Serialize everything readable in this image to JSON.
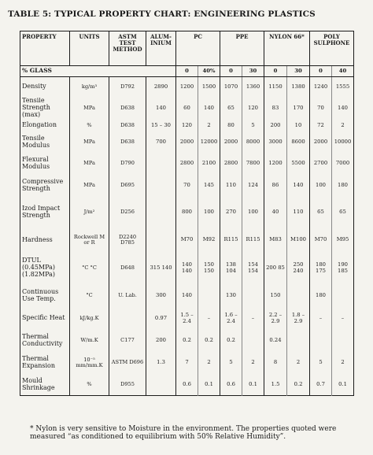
{
  "title": "TABLE 5: TYPICAL PROPERTY CHART: ENGINEERING PLASTICS",
  "headers": {
    "property": "PROPERTY",
    "units": "UNITS",
    "astm": "ASTM TEST METHOD",
    "aluminium": "ALUM- INIUM",
    "pc": "PC",
    "ppe": "PPE",
    "nylon": "NYLON 66*",
    "polysulphone": "POLY SULPHONE"
  },
  "glass_row": {
    "label": "% GLASS",
    "values": [
      "0",
      "40%",
      "0",
      "30",
      "0",
      "30",
      "0",
      "40"
    ]
  },
  "rows": [
    {
      "property": "Density",
      "units": "kg/m³",
      "astm": "D792",
      "alu": "2890",
      "values": [
        "1200",
        "1500",
        "1070",
        "1360",
        "1150",
        "1380",
        "1240",
        "1555"
      ]
    },
    {
      "property": "Tensile Strength (max)",
      "units": "MPa",
      "astm": "D638",
      "alu": "140",
      "values": [
        "60",
        "140",
        "65",
        "120",
        "83",
        "170",
        "70",
        "140"
      ]
    },
    {
      "property": "Elongation",
      "units": "%",
      "astm": "D638",
      "alu": "15 – 30",
      "values": [
        "120",
        "2",
        "80",
        "5",
        "200",
        "10",
        "72",
        "2"
      ]
    },
    {
      "property": "Tensile Modulus",
      "units": "MPa",
      "astm": "D638",
      "alu": "700",
      "values": [
        "2000",
        "12000",
        "2000",
        "8000",
        "3000",
        "8600",
        "2000",
        "10000"
      ]
    },
    {
      "property": "Flexural Modulus",
      "units": "MPa",
      "astm": "D790",
      "alu": "",
      "values": [
        "2800",
        "2100",
        "2800",
        "7800",
        "1200",
        "5500",
        "2700",
        "7000"
      ]
    },
    {
      "property": "Compressive Strength",
      "units": "MPa",
      "astm": "D695",
      "alu": "",
      "values": [
        "70",
        "145",
        "110",
        "124",
        "86",
        "140",
        "100",
        "180"
      ]
    },
    {
      "property": "Izod Impact Strength",
      "units": "J/m²",
      "astm": "D256",
      "alu": "",
      "values": [
        "800",
        "100",
        "270",
        "100",
        "40",
        "110",
        "65",
        "65"
      ]
    },
    {
      "property": "Hardness",
      "units": "Rockwell M or R",
      "astm": "D2240 D785",
      "alu": "",
      "values": [
        "M70",
        "M92",
        "R115",
        "R115",
        "M83",
        "M100",
        "M70",
        "M95"
      ]
    },
    {
      "property": "DTUL (0.45MPa) (1.82MPa)",
      "units": "°C °C",
      "astm": "D648",
      "alu": "315 140",
      "values": [
        "140 140",
        "150 150",
        "138 104",
        "154 154",
        "200 85",
        "250 240",
        "180 175",
        "190 185"
      ]
    },
    {
      "property": "Continuous Use Temp.",
      "units": "°C",
      "astm": "U. Lab.",
      "alu": "300",
      "values": [
        "140",
        "",
        "130",
        "",
        "150",
        "",
        "180",
        ""
      ]
    },
    {
      "property": "Specific Heat",
      "units": "kJ/kg.K",
      "astm": "",
      "alu": "0.97",
      "values": [
        "1.5 – 2.4",
        "–",
        "1.6 – 2.4",
        "–",
        "2.2 – 2.9",
        "1.8 – 2.9",
        "–",
        "–"
      ]
    },
    {
      "property": "Thermal Conductivity",
      "units": "W/m.K",
      "astm": "C177",
      "alu": "200",
      "values": [
        "0.2",
        "0.2",
        "0.2",
        "",
        "0.24",
        "",
        "",
        ""
      ]
    },
    {
      "property": "Thermal Expansion",
      "units": "10⁻⁵ mm/mm.K",
      "astm": "ASTM D696",
      "alu": "1.3",
      "values": [
        "7",
        "2",
        "5",
        "2",
        "8",
        "2",
        "5",
        "2"
      ]
    },
    {
      "property": "Mould Shrinkage",
      "units": "%",
      "astm": "D955",
      "alu": "",
      "values": [
        "0.6",
        "0.1",
        "0.6",
        "0.1",
        "1.5",
        "0.2",
        "0.7",
        "0.1"
      ]
    }
  ],
  "footnote": "* Nylon is very sensitive to Moisture in the environment. The properties quoted were measured “as conditioned to equilibrium with 50% Relative Humidity”."
}
